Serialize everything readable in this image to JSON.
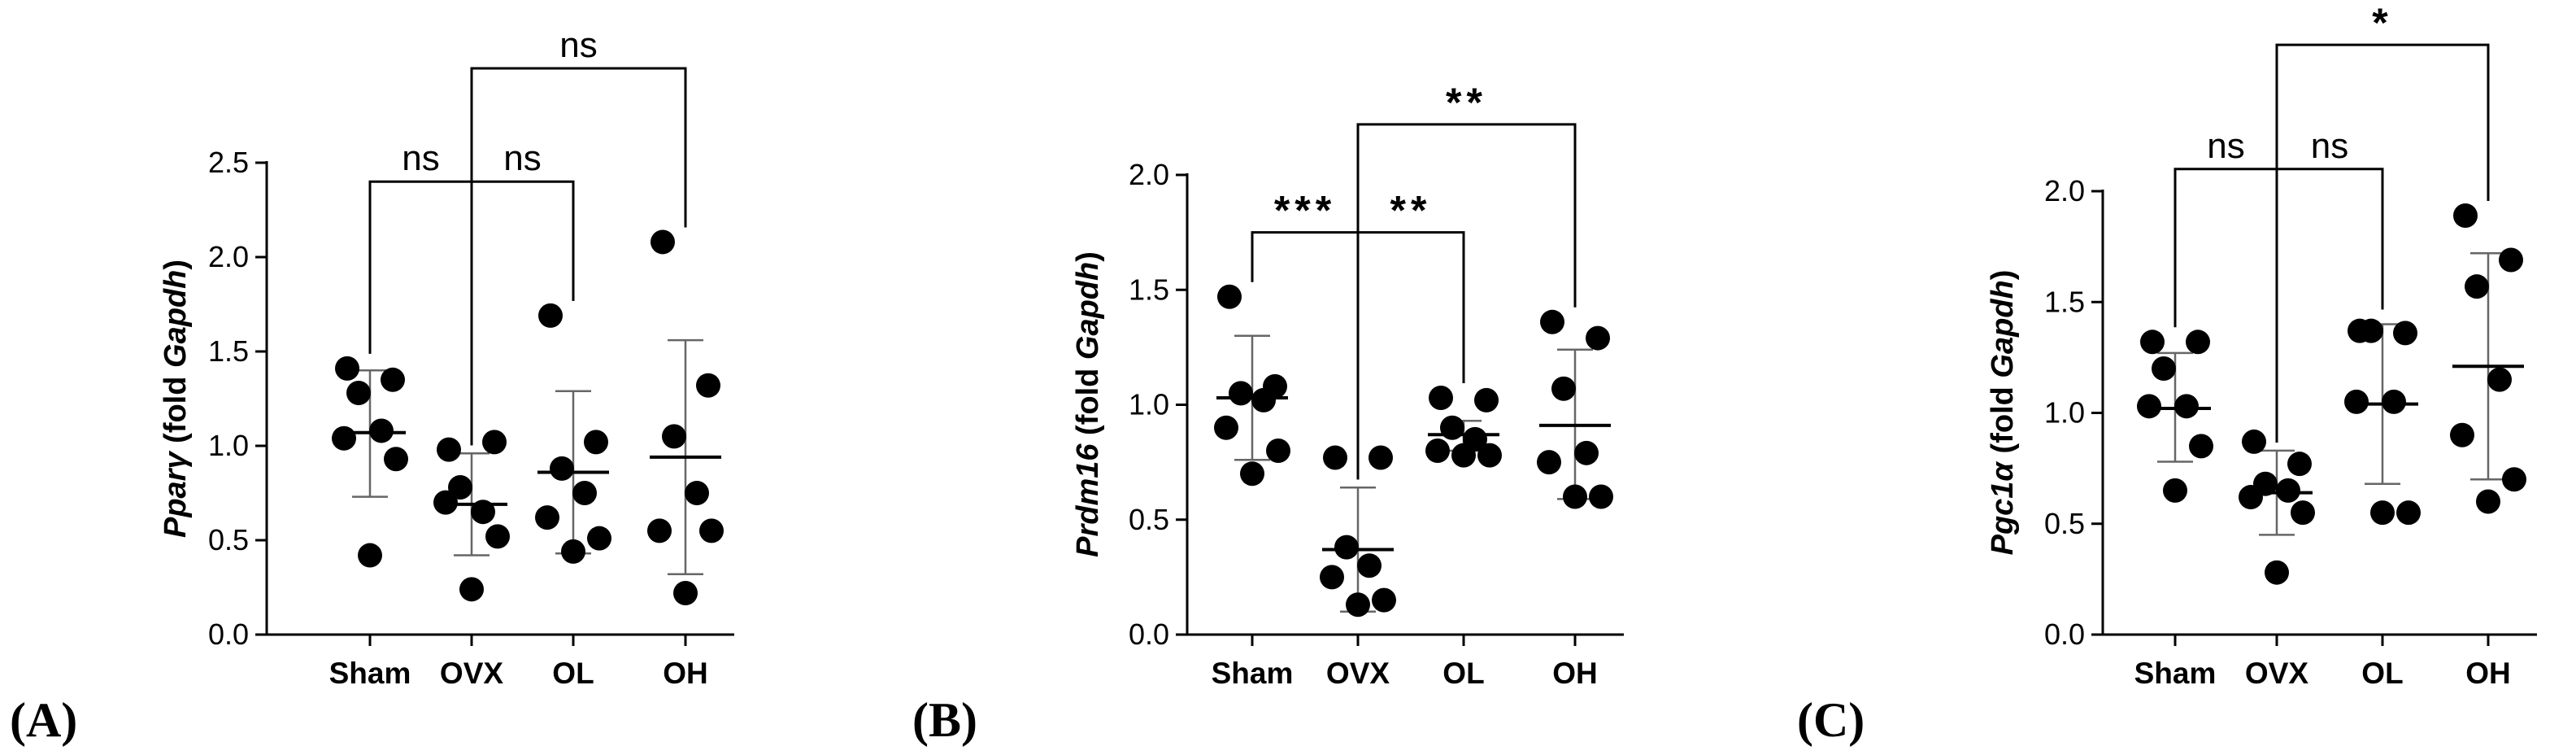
{
  "chart_data": [
    {
      "type": "scatter",
      "panel": "(A)",
      "ylabel": {
        "gene": "Pparγ",
        "mid": " (fold ",
        "ref": "Gapdh",
        "end": ")"
      },
      "ylim": [
        0,
        2.5
      ],
      "yticks": [
        {
          "value": 0.0,
          "label": "0.0"
        },
        {
          "value": 0.5,
          "label": "0.5"
        },
        {
          "value": 1.0,
          "label": "1.0"
        },
        {
          "value": 1.5,
          "label": "1.5"
        },
        {
          "value": 2.0,
          "label": "2.0"
        },
        {
          "value": 2.5,
          "label": "2.5"
        }
      ],
      "categories": [
        "Sham",
        "OVX",
        "OL",
        "OH"
      ],
      "groups": [
        {
          "name": "Sham",
          "points": [
            1.41,
            1.35,
            1.28,
            1.08,
            1.04,
            0.93,
            0.42
          ],
          "mean": 1.07,
          "sd_low": 0.73,
          "sd_high": 1.4
        },
        {
          "name": "OVX",
          "points": [
            0.98,
            1.02,
            0.78,
            0.65,
            0.7,
            0.52,
            0.24
          ],
          "mean": 0.69,
          "sd_low": 0.42,
          "sd_high": 0.96
        },
        {
          "name": "OL",
          "points": [
            1.69,
            1.02,
            0.88,
            0.75,
            0.62,
            0.51,
            0.44
          ],
          "mean": 0.86,
          "sd_low": 0.43,
          "sd_high": 1.29
        },
        {
          "name": "OH",
          "points": [
            2.08,
            1.32,
            1.05,
            0.75,
            0.55,
            0.55,
            0.22
          ],
          "mean": 0.94,
          "sd_low": 0.32,
          "sd_high": 1.56
        }
      ],
      "comparisons": [
        {
          "from": 1,
          "to": 0,
          "label": "ns",
          "level": 2.4,
          "starred": false
        },
        {
          "from": 1,
          "to": 2,
          "label": "ns",
          "level": 2.4,
          "starred": false
        },
        {
          "from": 1,
          "to": 3,
          "label": "ns",
          "level": 3.0,
          "starred": false
        }
      ]
    },
    {
      "type": "scatter",
      "panel": "(B)",
      "ylabel": {
        "gene": "Prdm16",
        "mid": " (fold ",
        "ref": "Gapdh",
        "end": ")"
      },
      "ylim": [
        0,
        2.0
      ],
      "yticks": [
        {
          "value": 0.0,
          "label": "0.0"
        },
        {
          "value": 0.5,
          "label": "0.5"
        },
        {
          "value": 1.0,
          "label": "1.0"
        },
        {
          "value": 1.5,
          "label": "1.5"
        },
        {
          "value": 2.0,
          "label": "2.0"
        }
      ],
      "categories": [
        "Sham",
        "OVX",
        "OL",
        "OH"
      ],
      "groups": [
        {
          "name": "Sham",
          "points": [
            1.47,
            1.08,
            1.05,
            1.02,
            0.9,
            0.8,
            0.7
          ],
          "mean": 1.03,
          "sd_low": 0.76,
          "sd_high": 1.3
        },
        {
          "name": "OVX",
          "points": [
            0.77,
            0.77,
            0.38,
            0.3,
            0.25,
            0.15,
            0.13
          ],
          "mean": 0.37,
          "sd_low": 0.1,
          "sd_high": 0.64
        },
        {
          "name": "OL",
          "points": [
            1.03,
            1.02,
            0.9,
            0.85,
            0.8,
            0.78,
            0.78
          ],
          "mean": 0.87,
          "sd_low": 0.8,
          "sd_high": 0.93
        },
        {
          "name": "OH",
          "points": [
            1.36,
            1.29,
            1.07,
            0.79,
            0.75,
            0.6,
            0.6
          ],
          "mean": 0.91,
          "sd_low": 0.59,
          "sd_high": 1.24
        }
      ],
      "comparisons": [
        {
          "from": 1,
          "to": 0,
          "label": "***",
          "level": 1.75,
          "starred": true
        },
        {
          "from": 1,
          "to": 2,
          "label": "**",
          "level": 1.75,
          "starred": true
        },
        {
          "from": 1,
          "to": 3,
          "label": "**",
          "level": 2.22,
          "starred": true
        }
      ]
    },
    {
      "type": "scatter",
      "panel": "(C)",
      "ylabel": {
        "gene": "Pgc1α",
        "mid": " (fold ",
        "ref": "Gapdh",
        "end": ")"
      },
      "ylim": [
        0,
        2.0
      ],
      "yticks": [
        {
          "value": 0.0,
          "label": "0.0"
        },
        {
          "value": 0.5,
          "label": "0.5"
        },
        {
          "value": 1.0,
          "label": "1.0"
        },
        {
          "value": 1.5,
          "label": "1.5"
        },
        {
          "value": 2.0,
          "label": "2.0"
        }
      ],
      "categories": [
        "Sham",
        "OVX",
        "OL",
        "OH"
      ],
      "groups": [
        {
          "name": "Sham",
          "points": [
            1.32,
            1.32,
            1.2,
            1.03,
            1.03,
            0.85,
            0.65
          ],
          "mean": 1.02,
          "sd_low": 0.78,
          "sd_high": 1.27
        },
        {
          "name": "OVX",
          "points": [
            0.87,
            0.77,
            0.68,
            0.65,
            0.62,
            0.55,
            0.28
          ],
          "mean": 0.64,
          "sd_low": 0.45,
          "sd_high": 0.83
        },
        {
          "name": "OL",
          "points": [
            1.37,
            1.36,
            1.37,
            1.05,
            1.05,
            0.55,
            0.55
          ],
          "mean": 1.04,
          "sd_low": 0.68,
          "sd_high": 1.4
        },
        {
          "name": "OH",
          "points": [
            1.89,
            1.69,
            1.57,
            1.15,
            0.9,
            0.7,
            0.6
          ],
          "mean": 1.21,
          "sd_low": 0.7,
          "sd_high": 1.72
        }
      ],
      "comparisons": [
        {
          "from": 1,
          "to": 0,
          "label": "ns",
          "level": 2.1,
          "starred": false
        },
        {
          "from": 1,
          "to": 2,
          "label": "ns",
          "level": 2.1,
          "starred": false
        },
        {
          "from": 1,
          "to": 3,
          "label": "*",
          "level": 2.66,
          "starred": true
        }
      ]
    }
  ]
}
